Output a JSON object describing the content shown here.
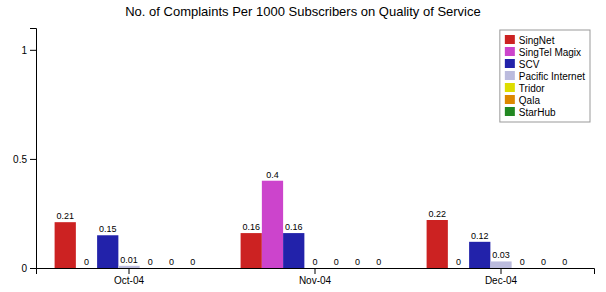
{
  "chart_data": {
    "type": "bar",
    "title": "No. of Complaints Per 1000 Subscribers on Quality of Service",
    "categories": [
      "Oct-04",
      "Nov-04",
      "Dec-04"
    ],
    "series": [
      {
        "name": "SingNet",
        "color": "#CC2222",
        "values": [
          0.21,
          0.16,
          0.22
        ]
      },
      {
        "name": "SingTel Magix",
        "color": "#CC44CC",
        "values": [
          0,
          0.4,
          0
        ]
      },
      {
        "name": "SCV",
        "color": "#2222AA",
        "values": [
          0.15,
          0.16,
          0.12
        ]
      },
      {
        "name": "Pacific Internet",
        "color": "#BBBBDD",
        "values": [
          0.01,
          0,
          0.03
        ]
      },
      {
        "name": "Tridor",
        "color": "#DDDD00",
        "values": [
          0,
          0,
          0
        ]
      },
      {
        "name": "Qala",
        "color": "#DD8800",
        "values": [
          0,
          0,
          0
        ]
      },
      {
        "name": "StarHub",
        "color": "#228822",
        "values": [
          0,
          0,
          0
        ]
      }
    ],
    "ylim": [
      0,
      1.1
    ],
    "yticks": [
      0,
      0.5,
      1
    ],
    "grid": false,
    "legend": "upper right",
    "data_labels": true
  }
}
